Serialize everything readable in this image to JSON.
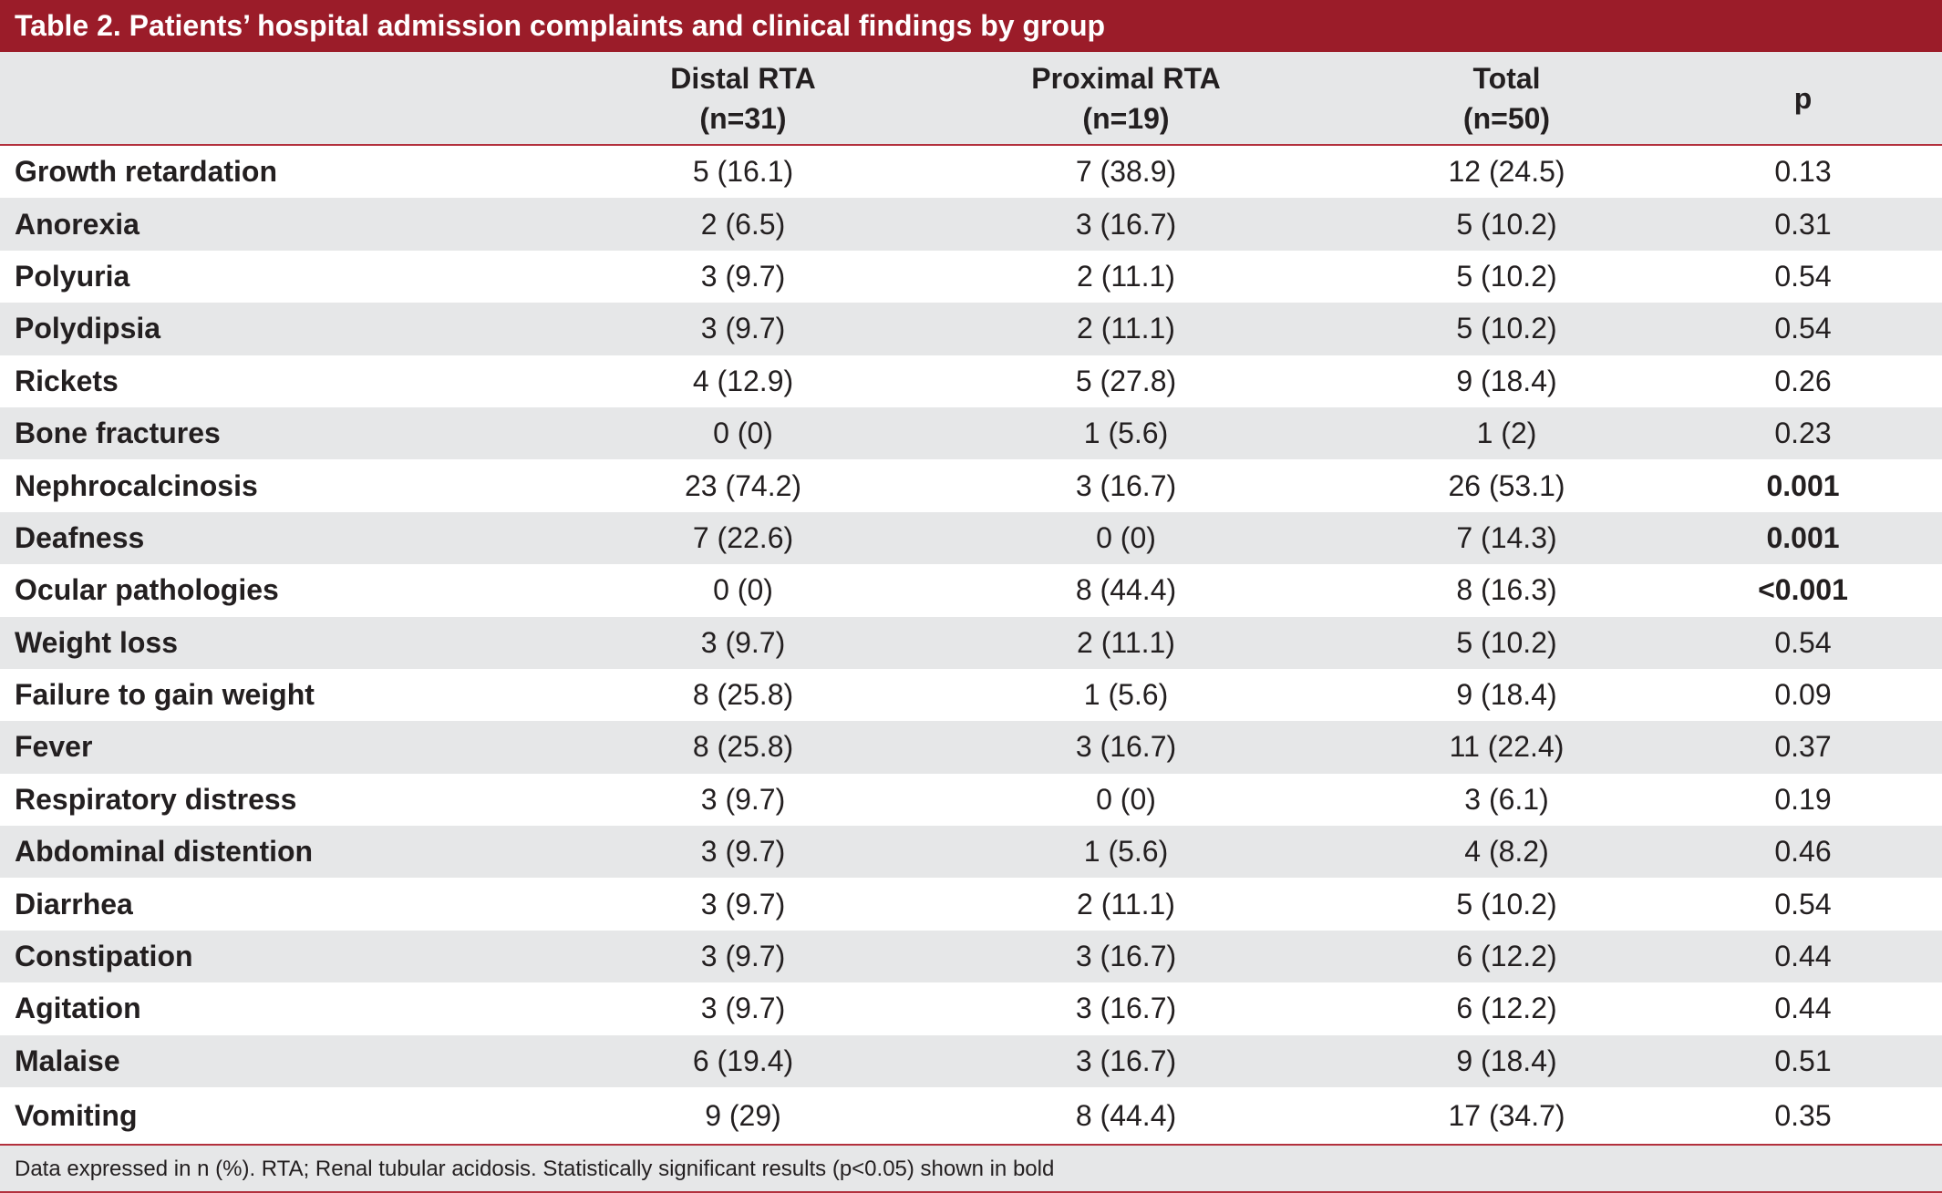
{
  "title": "Table 2. Patients’ hospital admission complaints and clinical findings by group",
  "headers": [
    {
      "line1": "",
      "line2": ""
    },
    {
      "line1": "Distal RTA",
      "line2": "(n=31)"
    },
    {
      "line1": "Proximal RTA",
      "line2": "(n=19)"
    },
    {
      "line1": "Total",
      "line2": "(n=50)"
    },
    {
      "line1": "p",
      "line2": ""
    }
  ],
  "rows": [
    {
      "label": "Growth retardation",
      "distal": "5 (16.1)",
      "proximal": "7 (38.9)",
      "total": "12 (24.5)",
      "p": "0.13"
    },
    {
      "label": "Anorexia",
      "distal": "2 (6.5)",
      "proximal": "3 (16.7)",
      "total": "5 (10.2)",
      "p": "0.31"
    },
    {
      "label": "Polyuria",
      "distal": "3 (9.7)",
      "proximal": "2 (11.1)",
      "total": "5 (10.2)",
      "p": "0.54"
    },
    {
      "label": "Polydipsia",
      "distal": "3 (9.7)",
      "proximal": "2 (11.1)",
      "total": "5 (10.2)",
      "p": "0.54"
    },
    {
      "label": "Rickets",
      "distal": "4 (12.9)",
      "proximal": "5 (27.8)",
      "total": "9 (18.4)",
      "p": "0.26"
    },
    {
      "label": "Bone fractures",
      "distal": "0 (0)",
      "proximal": "1 (5.6)",
      "total": "1 (2)",
      "p": "0.23"
    },
    {
      "label": "Nephrocalcinosis",
      "distal": "23 (74.2)",
      "proximal": "3 (16.7)",
      "total": "26 (53.1)",
      "p": "0.001"
    },
    {
      "label": "Deafness",
      "distal": "7 (22.6)",
      "proximal": "0 (0)",
      "total": "7 (14.3)",
      "p": "0.001"
    },
    {
      "label": "Ocular pathologies",
      "distal": "0 (0)",
      "proximal": "8 (44.4)",
      "total": "8 (16.3)",
      "p": "<0.001"
    },
    {
      "label": "Weight loss",
      "distal": "3 (9.7)",
      "proximal": "2 (11.1)",
      "total": "5 (10.2)",
      "p": "0.54"
    },
    {
      "label": "Failure to gain weight",
      "distal": "8 (25.8)",
      "proximal": "1 (5.6)",
      "total": "9 (18.4)",
      "p": "0.09"
    },
    {
      "label": "Fever",
      "distal": "8 (25.8)",
      "proximal": "3 (16.7)",
      "total": "11 (22.4)",
      "p": "0.37"
    },
    {
      "label": "Respiratory distress",
      "distal": "3 (9.7)",
      "proximal": "0 (0)",
      "total": "3 (6.1)",
      "p": "0.19"
    },
    {
      "label": "Abdominal distention",
      "distal": "3 (9.7)",
      "proximal": "1 (5.6)",
      "total": "4 (8.2)",
      "p": "0.46"
    },
    {
      "label": "Diarrhea",
      "distal": "3 (9.7)",
      "proximal": "2 (11.1)",
      "total": "5 (10.2)",
      "p": "0.54"
    },
    {
      "label": "Constipation",
      "distal": "3 (9.7)",
      "proximal": "3 (16.7)",
      "total": "6 (12.2)",
      "p": "0.44"
    },
    {
      "label": "Agitation",
      "distal": "3 (9.7)",
      "proximal": "3 (16.7)",
      "total": "6 (12.2)",
      "p": "0.44"
    },
    {
      "label": "Malaise",
      "distal": "6 (19.4)",
      "proximal": "3 (16.7)",
      "total": "9 (18.4)",
      "p": "0.51"
    },
    {
      "label": "Vomiting",
      "distal": "9 (29)",
      "proximal": "8 (44.4)",
      "total": "17 (34.7)",
      "p": "0.35"
    }
  ],
  "significant_rows": [
    6,
    7,
    8
  ],
  "footnote": "Data expressed in n (%). RTA; Renal tubular acidosis. Statistically significant results (p<0.05) shown in bold",
  "colors": {
    "title_bar": "#9b1c29",
    "rule": "#b3303d",
    "stripe": "#e6e7e8"
  }
}
